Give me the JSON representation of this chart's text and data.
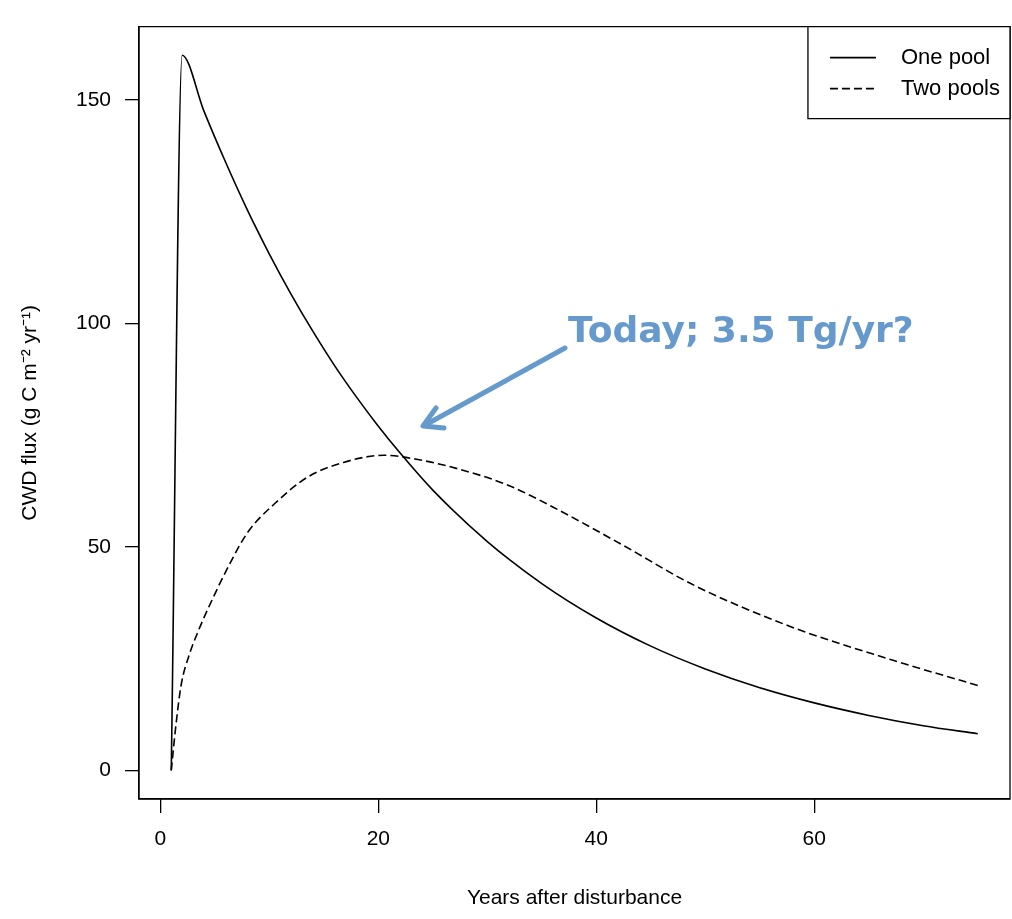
{
  "chart_data": {
    "type": "line",
    "xlabel": "Years after disturbance",
    "ylabel": "CWD flux (g C m⁻² yr⁻¹)",
    "xlim": [
      -1.96,
      77.96
    ],
    "ylim": [
      -6.4,
      166.4
    ],
    "xticks": [
      0,
      20,
      40,
      60
    ],
    "yticks": [
      0,
      50,
      100,
      150
    ],
    "legend": "top right",
    "marker": "none",
    "series": [
      {
        "name": "One pool",
        "color": "#000000",
        "line_style": "solid",
        "x": [
          1,
          2,
          4,
          6,
          8,
          10,
          12,
          14,
          16,
          18,
          20,
          22,
          25,
          30,
          35,
          40,
          45,
          50,
          55,
          60,
          65,
          70,
          75
        ],
        "values": [
          0,
          160,
          147.5,
          136,
          125.3,
          115.5,
          106.5,
          98.2,
          90.5,
          83.5,
          77,
          71,
          62.7,
          51.2,
          41.8,
          34.1,
          27.8,
          22.7,
          18.5,
          15.1,
          12.3,
          10,
          8.2
        ]
      },
      {
        "name": "Two pools",
        "color": "#000000",
        "line_style": "dashed",
        "x": [
          1,
          1.4,
          1.9,
          2.6,
          3.5,
          4.7,
          6.3,
          8,
          10.5,
          13.5,
          16.8,
          20.5,
          23.5,
          27.4,
          31.9,
          36.5,
          42.5,
          48.9,
          57.9,
          67,
          75
        ],
        "values": [
          0,
          9.5,
          19,
          25.5,
          31.3,
          37.9,
          45.9,
          53.2,
          59.7,
          65.6,
          68.9,
          70.5,
          69.6,
          67.4,
          63.8,
          58.3,
          50.3,
          41.5,
          32.1,
          24.8,
          19
        ]
      }
    ],
    "annotations": [
      "Today; 3.5 Tg/yr?"
    ]
  }
}
